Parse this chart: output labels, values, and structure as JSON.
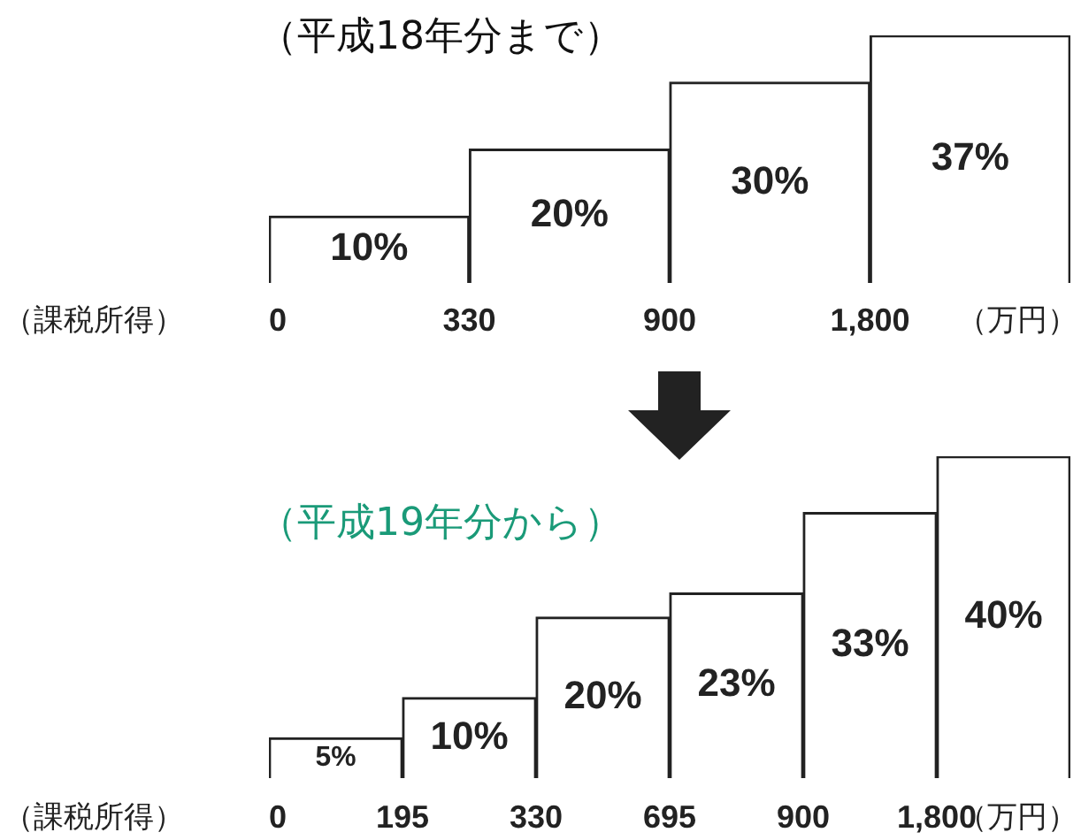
{
  "chart_data": [
    {
      "type": "bar",
      "title": "（平成18年分まで）",
      "categories": [
        null,
        null,
        null,
        null
      ],
      "values": [
        10,
        20,
        30,
        37
      ],
      "value_labels": [
        "10%",
        "20%",
        "30%",
        "37%"
      ],
      "color": "#ffffff",
      "annotations": [
        "0",
        "330",
        "900",
        "1,800",
        "（万円）",
        "（課税所得）"
      ]
    },
    {
      "type": "bar",
      "title": "（平成19年分から）",
      "categories": [
        null,
        null,
        null,
        null,
        null,
        null
      ],
      "values": [
        5,
        10,
        20,
        23,
        33,
        40
      ],
      "value_labels": [
        "5%",
        "10%",
        "20%",
        "23%",
        "33%",
        "40%"
      ],
      "color": "#ffffff",
      "annotations": [
        "0",
        "195",
        "330",
        "695",
        "900",
        "1,800",
        "（万円）",
        "（課税所得）"
      ]
    }
  ]
}
